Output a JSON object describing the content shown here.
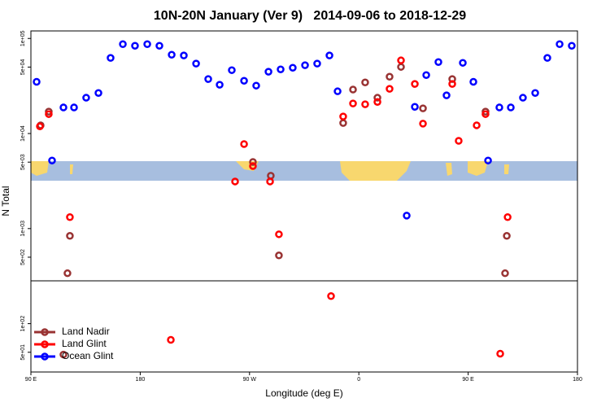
{
  "chart_data": {
    "type": "scatter",
    "title": "10N-20N January (Ver 9)   2014-09-06 to 2018-12-29",
    "x_label": "Longitude (deg E)",
    "y_label": "N Total",
    "ylog": true,
    "legend": "bottom-left",
    "xlim": [
      90,
      540
    ],
    "xticks": [
      {
        "value": 90,
        "label": "90 E"
      },
      180,
      {
        "value": 270,
        "label": "90 W"
      },
      {
        "value": 360,
        "label": "0"
      },
      {
        "value": 450,
        "label": "90 E"
      },
      {
        "value": 540,
        "label": "180"
      }
    ],
    "ylim": [
      31,
      120000
    ],
    "yticks": [
      {
        "value": 100000,
        "label": "1e+05"
      },
      {
        "value": 50000,
        "label": "5e+04"
      },
      {
        "value": 10000,
        "label": "1e+04"
      },
      {
        "value": 5000,
        "label": "5e+03"
      },
      {
        "value": 1000,
        "label": "1e+03"
      },
      {
        "value": 500,
        "label": "5e+02"
      },
      {
        "value": 100,
        "label": "1e+02"
      },
      {
        "value": 50,
        "label": "5e+01"
      }
    ],
    "series": [
      {
        "name": "Land Nadir",
        "color": "#993333",
        "x": [
          98,
          104.7,
          122.1,
          120.1,
          272.8,
          287.5,
          294.2,
          347.1,
          355.2,
          365.2,
          375.3,
          385.3,
          394.7,
          412.8,
          436.9,
          464.3,
          481.8,
          480.4,
          116.8
        ],
        "values": [
          12200,
          17000,
          838,
          339,
          5020,
          3600,
          522,
          12900,
          29000,
          34500,
          23800,
          39600,
          50200,
          18400,
          37400,
          17000,
          838,
          339,
          47.3
        ]
      },
      {
        "name": "Land Glint",
        "color": "#ff0000",
        "x": [
          97.4,
          104.7,
          122.1,
          265.5,
          258.1,
          272.8,
          286.9,
          294.2,
          337.1,
          347.1,
          355.2,
          365.2,
          375.3,
          385.3,
          394.7,
          406.1,
          412.8,
          436.9,
          442.2,
          457,
          464.3,
          482.5,
          476.4,
          205.2
        ],
        "values": [
          11900,
          16000,
          1320,
          7740,
          3130,
          4550,
          3130,
          871,
          195,
          15100,
          20700,
          20300,
          21500,
          29500,
          58800,
          33200,
          12700,
          33200,
          8380,
          12200,
          16000,
          1320,
          48.3,
          67.5
        ]
      },
      {
        "name": "Ocean Glint",
        "color": "#0000ff",
        "x": [
          94.7,
          107.4,
          116.8,
          125.5,
          135.5,
          145.6,
          155.6,
          165.7,
          175.7,
          185.8,
          195.8,
          205.9,
          215.9,
          226,
          236,
          245.4,
          255.4,
          265.5,
          275.5,
          285.6,
          295.6,
          305.6,
          315.7,
          325.7,
          335.8,
          342.5,
          399.4,
          406.1,
          415.5,
          425.5,
          432.2,
          445.6,
          454.3,
          466.4,
          475.7,
          485.1,
          495.1,
          505.2,
          515.2,
          525.3,
          535.3
        ],
        "values": [
          35000,
          5200,
          18800,
          18800,
          23800,
          26700,
          62400,
          87100,
          83800,
          87100,
          83800,
          67400,
          66200,
          54400,
          37400,
          32600,
          46400,
          35900,
          31900,
          44700,
          47300,
          49200,
          52300,
          54400,
          66200,
          27800,
          1370,
          19100,
          41200,
          56500,
          25200,
          55400,
          35000,
          5200,
          18800,
          18800,
          23800,
          26700,
          62400,
          87100,
          83800
        ]
      }
    ]
  }
}
